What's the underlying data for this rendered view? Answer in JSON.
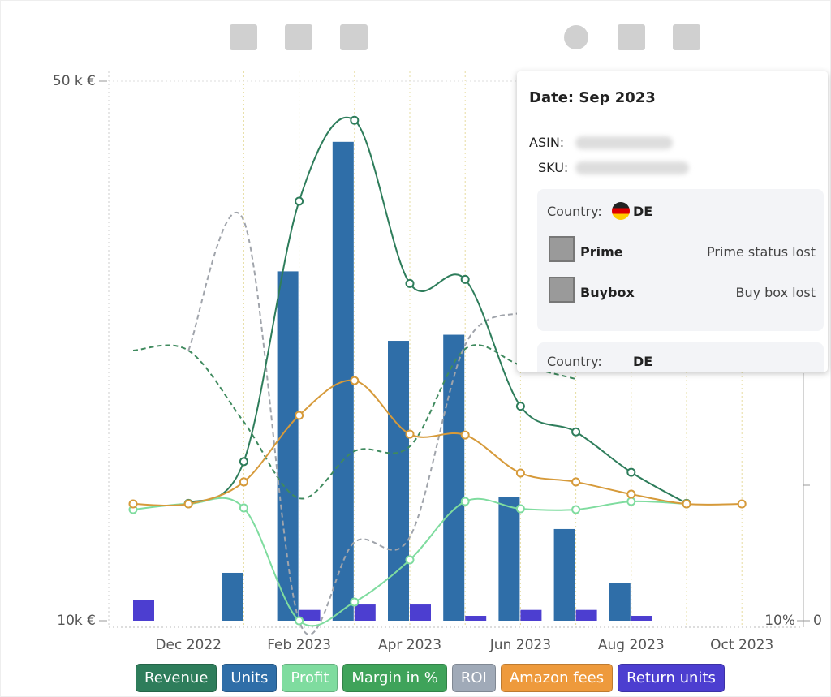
{
  "chart_data": {
    "type": "combo",
    "categories": [
      null,
      "Dec 2022",
      null,
      "Feb 2023",
      null,
      "Apr 2023",
      null,
      "Jun 2023",
      null,
      "Aug 2023",
      null,
      "Oct 2023"
    ],
    "ylim": [
      10000,
      50000
    ],
    "yticks": [
      {
        "value": 10000,
        "label": "10k €"
      },
      {
        "value": 50000,
        "label": "50 k €"
      }
    ],
    "y2ticks": [
      {
        "value": 10,
        "label": "10%"
      }
    ],
    "y3ticks": [
      0
    ],
    "series": [
      {
        "name": "Revenue",
        "color": "#2e7d5b",
        "type": "line",
        "markers": true,
        "values": [
          null,
          18700,
          21800,
          41100,
          47100,
          35000,
          35300,
          25900,
          24000,
          21000,
          18700,
          null
        ]
      },
      {
        "name": "Units",
        "color": "#2f6ea8",
        "type": "bar",
        "values": [
          null,
          null,
          13550,
          35900,
          45500,
          30750,
          31200,
          19200,
          16800,
          12800,
          null,
          null
        ]
      },
      {
        "name": "Profit",
        "color": "#7fdc9f",
        "type": "line",
        "markers": true,
        "values": [
          18240,
          18660,
          18360,
          10000,
          11380,
          14510,
          18840,
          18300,
          18240,
          18840,
          18660,
          null
        ]
      },
      {
        "name": "Margin in %",
        "color": "#3f8a5e",
        "legend_color": "#3fa35a",
        "type": "line",
        "dashed": true,
        "values": [
          30030,
          30030,
          24740,
          19080,
          22570,
          22930,
          30150,
          28950,
          27920,
          null,
          null,
          null
        ]
      },
      {
        "name": "ROI",
        "color": "#a0a4ab",
        "legend_color": "#a0aab8",
        "type": "line",
        "dashed": true,
        "values": [
          null,
          30030,
          39650,
          10000,
          15830,
          16200,
          30450,
          32860,
          null,
          null,
          null,
          null
        ]
      },
      {
        "name": "Amazon fees",
        "color": "#d69a3a",
        "legend_color": "#ee9a3c",
        "type": "line",
        "markers": true,
        "values": [
          18660,
          18660,
          20290,
          25220,
          27800,
          23830,
          23770,
          20950,
          20290,
          19380,
          18660,
          18660
        ]
      },
      {
        "name": "Return units",
        "color": "#4c3ed0",
        "type": "bar",
        "values": [
          11560,
          null,
          null,
          10800,
          11200,
          11200,
          10360,
          10800,
          10800,
          10360,
          null,
          null
        ]
      }
    ]
  },
  "tooltip": {
    "date": "Date: Sep 2023",
    "asin": "ASIN:",
    "sku": "SKU:",
    "country": "Country:",
    "country_code": "DE",
    "prime": "Prime",
    "prime_status": "Prime status lost",
    "buybox": "Buybox",
    "buybox_status": "Buy box lost",
    "country_cut": "Country:",
    "country_code_cut": "DE"
  }
}
